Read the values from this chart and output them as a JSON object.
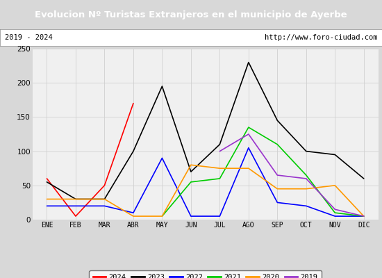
{
  "title": "Evolucion Nº Turistas Extranjeros en el municipio de Ayerbe",
  "title_color": "#ffffff",
  "title_bg": "#4472c4",
  "subtitle_left": "2019 - 2024",
  "subtitle_right": "http://www.foro-ciudad.com",
  "months": [
    "ENE",
    "FEB",
    "MAR",
    "ABR",
    "MAY",
    "JUN",
    "JUL",
    "AGO",
    "SEP",
    "OCT",
    "NOV",
    "DIC"
  ],
  "ylim": [
    0,
    250
  ],
  "yticks": [
    0,
    50,
    100,
    150,
    200,
    250
  ],
  "series": {
    "2024": {
      "color": "#ff0000",
      "data": [
        60,
        5,
        50,
        170,
        null,
        null,
        null,
        null,
        null,
        null,
        null,
        null
      ]
    },
    "2023": {
      "color": "#000000",
      "data": [
        55,
        30,
        30,
        100,
        195,
        70,
        110,
        230,
        145,
        100,
        95,
        60
      ]
    },
    "2022": {
      "color": "#0000ff",
      "data": [
        20,
        20,
        20,
        10,
        90,
        5,
        5,
        105,
        25,
        20,
        5,
        5
      ]
    },
    "2021": {
      "color": "#00cc00",
      "data": [
        null,
        null,
        null,
        null,
        5,
        55,
        60,
        135,
        110,
        65,
        10,
        5
      ]
    },
    "2020": {
      "color": "#ff9900",
      "data": [
        30,
        30,
        30,
        5,
        5,
        80,
        75,
        75,
        45,
        45,
        50,
        5
      ]
    },
    "2019": {
      "color": "#9933cc",
      "data": [
        null,
        null,
        null,
        null,
        null,
        null,
        100,
        125,
        65,
        60,
        15,
        5
      ]
    }
  },
  "legend_order": [
    "2024",
    "2023",
    "2022",
    "2021",
    "2020",
    "2019"
  ],
  "plot_bg": "#f0f0f0",
  "grid_color": "#d0d0d0",
  "fig_bg": "#d8d8d8"
}
